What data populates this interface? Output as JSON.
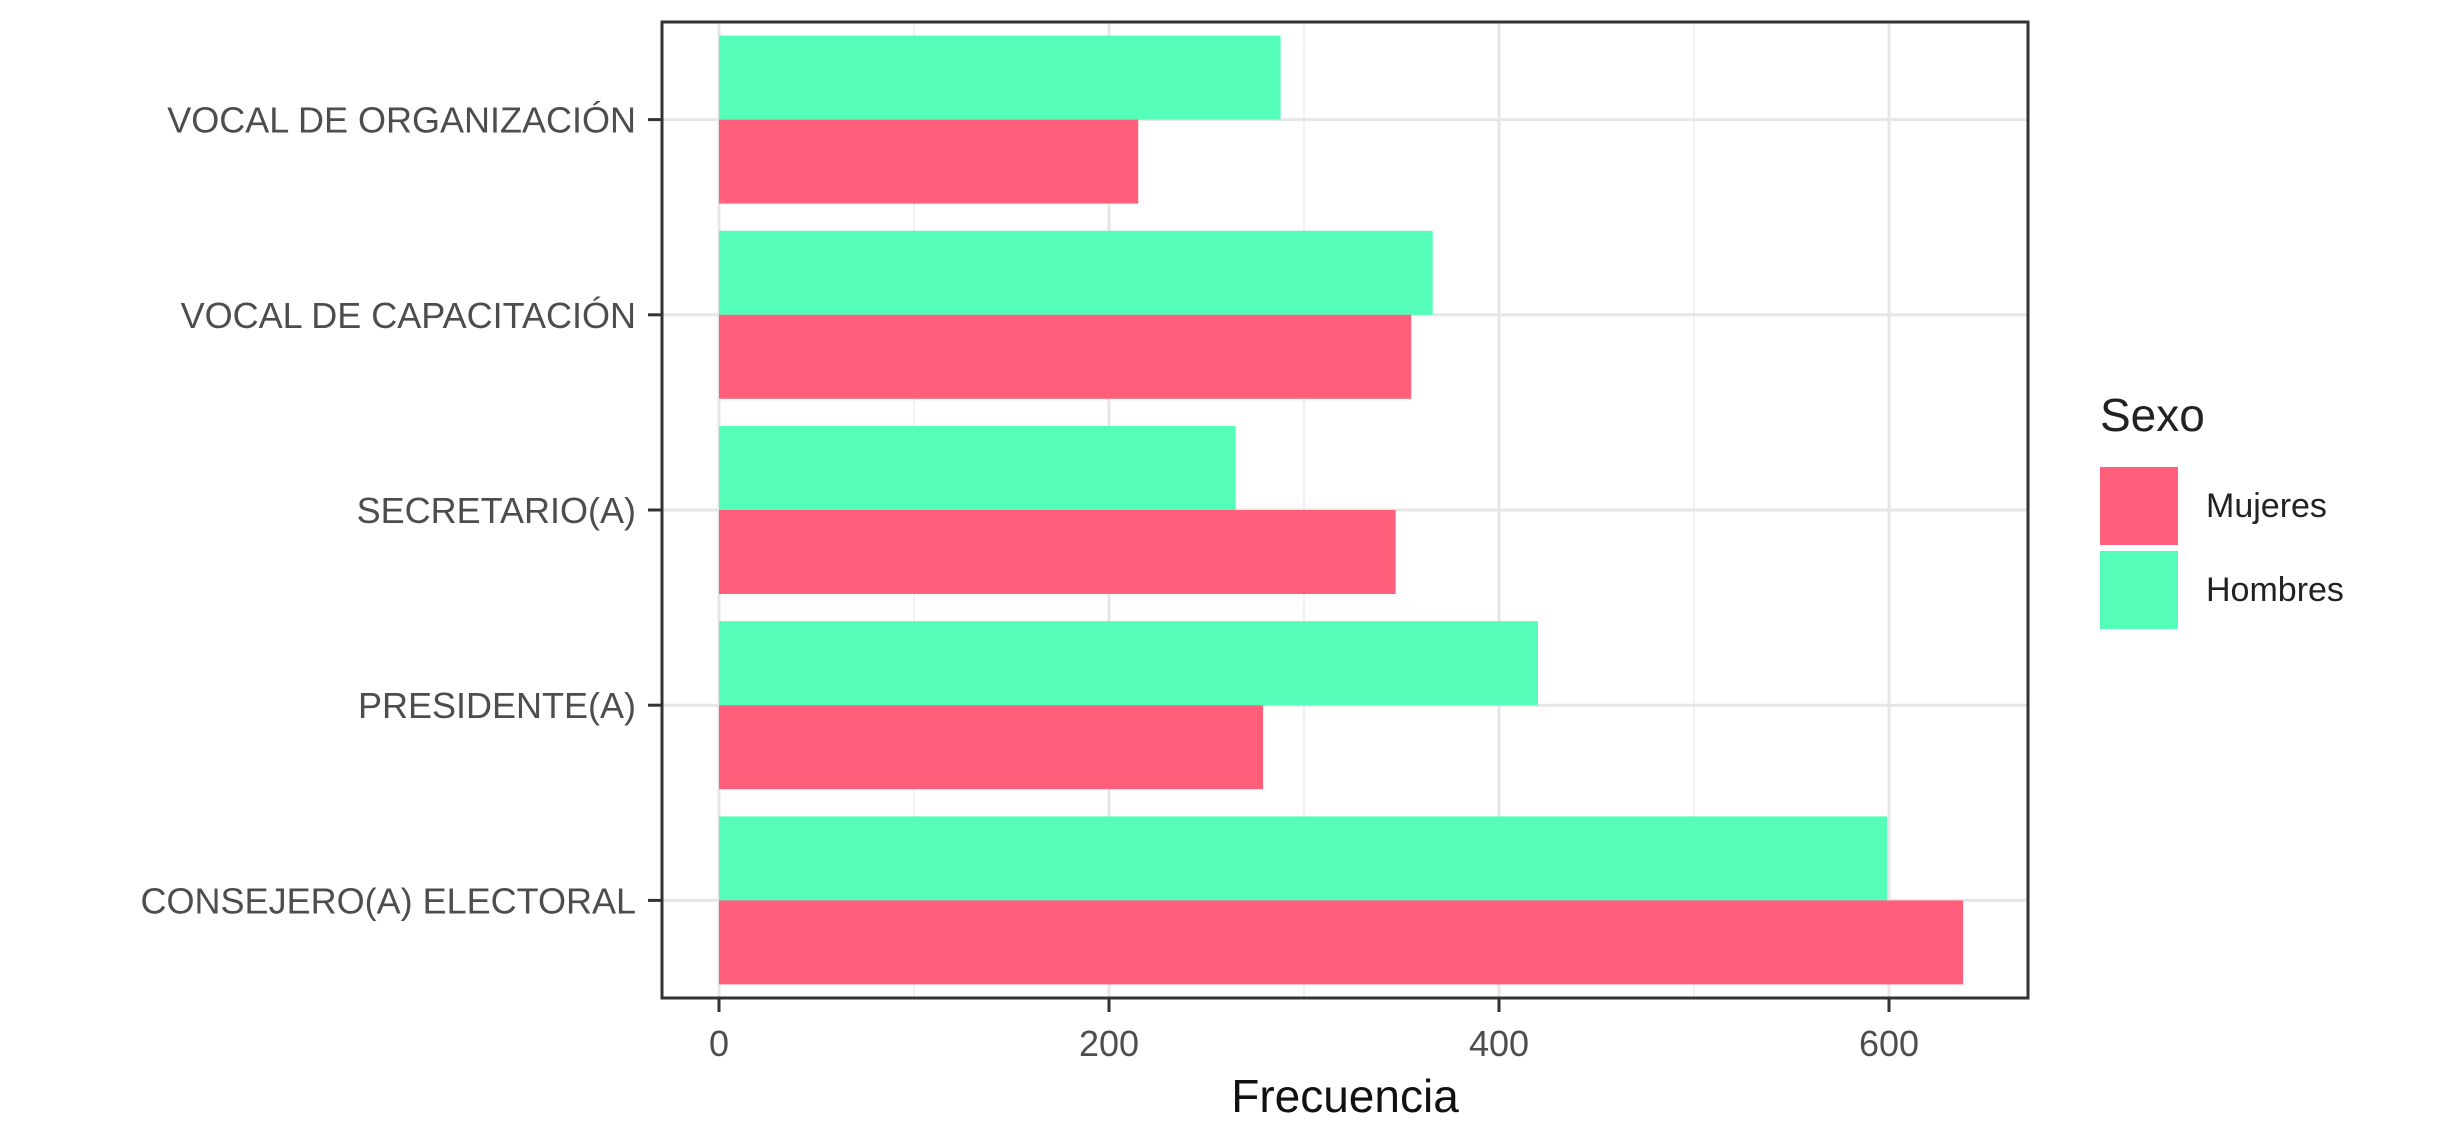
{
  "chart_data": {
    "type": "bar",
    "orientation": "horizontal",
    "categories": [
      "VOCAL DE ORGANIZACIÓN",
      "VOCAL DE CAPACITACIÓN",
      "SECRETARIO(A)",
      "PRESIDENTE(A)",
      "CONSEJERO(A) ELECTORAL"
    ],
    "series": [
      {
        "name": "Hombres",
        "color": "#54fdb8",
        "values": [
          288,
          366,
          265,
          420,
          599
        ]
      },
      {
        "name": "Mujeres",
        "color": "#ff5f7a",
        "values": [
          215,
          355,
          347,
          279,
          638
        ]
      }
    ],
    "xlabel": "Frecuencia",
    "ylabel": "",
    "xlim": [
      -30,
      670
    ],
    "xticks": [
      0,
      200,
      400,
      600
    ],
    "grid": true,
    "legend": {
      "title": "Sexo",
      "placement": "right",
      "entries": [
        {
          "label": "Mujeres",
          "color": "#ff5f7a"
        },
        {
          "label": "Hombres",
          "color": "#54fdb8"
        }
      ]
    }
  }
}
